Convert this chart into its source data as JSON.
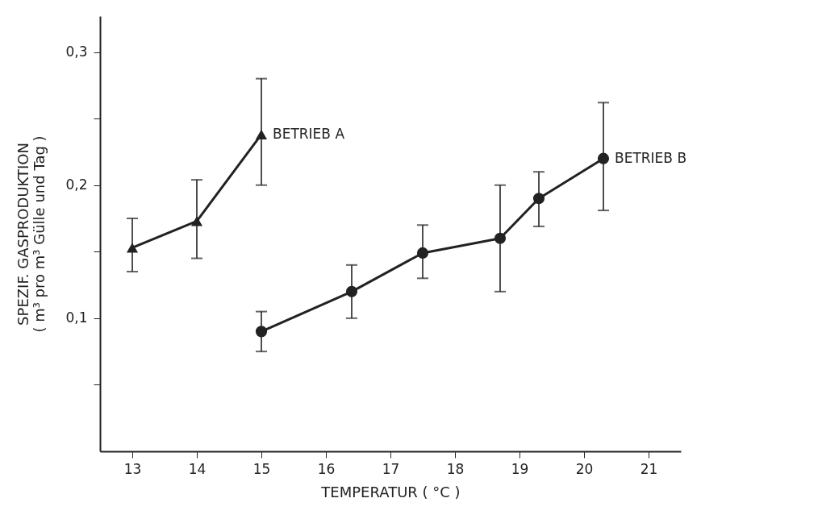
{
  "chart_data": {
    "type": "line",
    "xlabel": "TEMPERATUR ( °C )",
    "ylabel": "SPEZIF. GASPRODUKTION\n( m³ pro m³ Gülle und Tag )",
    "xlim": [
      12.5,
      21.5
    ],
    "xticks": [
      13,
      14,
      15,
      16,
      17,
      18,
      19,
      20,
      21
    ],
    "ylim": [
      0,
      0.327
    ],
    "yticks": [
      {
        "value": 0.05,
        "label": null
      },
      {
        "value": 0.1,
        "label": "0,1"
      },
      {
        "value": 0.15,
        "label": null
      },
      {
        "value": 0.2,
        "label": "0,2"
      },
      {
        "value": 0.25,
        "label": null
      },
      {
        "value": 0.3,
        "label": "0,3"
      }
    ],
    "grid": false,
    "legend": false,
    "line_style": "solid",
    "series": [
      {
        "name": "BETRIEB A",
        "color": "#222222",
        "marker": "triangle",
        "x": [
          13,
          14,
          15
        ],
        "values": [
          0.153,
          0.173,
          0.238
        ],
        "errors": [
          [
            0.135,
            0.175
          ],
          [
            0.145,
            0.204
          ],
          [
            0.2,
            0.28
          ]
        ]
      },
      {
        "name": "BETRIEB B",
        "color": "#222222",
        "marker": "circle",
        "x": [
          15,
          16.4,
          17.5,
          18.7,
          19.3,
          20.3
        ],
        "values": [
          0.09,
          0.12,
          0.149,
          0.16,
          0.19,
          0.22
        ],
        "errors": [
          [
            0.075,
            0.105
          ],
          [
            0.1,
            0.14
          ],
          [
            0.13,
            0.17
          ],
          [
            0.12,
            0.2
          ],
          [
            0.169,
            0.21
          ],
          [
            0.181,
            0.262
          ]
        ]
      }
    ]
  }
}
